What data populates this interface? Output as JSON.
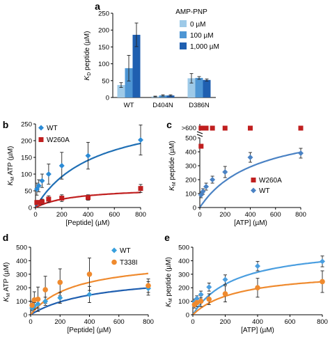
{
  "chart_data": [
    {
      "panel": "a",
      "type": "bar",
      "ylabel": "K_D peptide (µM)",
      "ylim": [
        0,
        250
      ],
      "yticks": [
        0,
        50,
        100,
        150,
        200,
        250
      ],
      "categories": [
        "WT",
        "D404N",
        "D386N"
      ],
      "legend_title": "AMP-PNP",
      "legend_position": "top-right",
      "series": [
        {
          "name": "0 µM",
          "color": "#9ecae8",
          "values": [
            37,
            3,
            57
          ],
          "err": [
            7,
            1,
            14
          ]
        },
        {
          "name": "100 µM",
          "color": "#4e96d4",
          "values": [
            87,
            6,
            58
          ],
          "err": [
            38,
            2,
            4
          ]
        },
        {
          "name": "1,000 µM",
          "color": "#1f5fb0",
          "values": [
            186,
            6,
            52
          ],
          "err": [
            35,
            2,
            3
          ]
        }
      ]
    },
    {
      "panel": "b",
      "type": "scatter",
      "xlabel": "[Peptide] (µM)",
      "ylabel": "K_M ATP (µM)",
      "xlim": [
        0,
        800
      ],
      "ylim": [
        0,
        250
      ],
      "xticks": [
        0,
        200,
        400,
        600,
        800
      ],
      "yticks": [
        0,
        50,
        100,
        150,
        200,
        250
      ],
      "legend_position": "top-left",
      "series": [
        {
          "name": "WT",
          "marker": "diamond",
          "color": "#2b8bd6",
          "curve_color": "#1f6fb5",
          "x": [
            10,
            25,
            50,
            100,
            200,
            400,
            800
          ],
          "y": [
            55,
            65,
            80,
            100,
            125,
            155,
            202
          ],
          "err": [
            18,
            18,
            20,
            30,
            40,
            40,
            45
          ],
          "fit": {
            "vmax": 300,
            "k": 450
          }
        },
        {
          "name": "W260A",
          "marker": "square",
          "color": "#c01f1f",
          "curve_color": "#c01f1f",
          "x": [
            10,
            25,
            50,
            100,
            200,
            400,
            800
          ],
          "y": [
            15,
            15,
            17,
            25,
            28,
            30,
            57
          ],
          "err": [
            6,
            6,
            8,
            10,
            10,
            8,
            12
          ],
          "fit": {
            "vmax": 62,
            "k": 300
          }
        }
      ]
    },
    {
      "panel": "c",
      "type": "scatter",
      "xlabel": "[ATP] (µM)",
      "ylabel": "K_M peptide (µM)",
      "xlim": [
        0,
        800
      ],
      "ylim": [
        0,
        500
      ],
      "xticks": [
        0,
        200,
        400,
        600,
        800
      ],
      "yticks": [
        0,
        100,
        200,
        300,
        400,
        500
      ],
      "y_break_label": ">600",
      "legend_position": "bottom-right",
      "series": [
        {
          "name": "W260A",
          "marker": "square",
          "color": "#c01f1f",
          "x": [
            10,
            25,
            50,
            100,
            200,
            400,
            800
          ],
          "y": [
            ">600",
            ">600",
            ">600",
            ">600",
            ">600",
            ">600",
            ">600"
          ],
          "extra_point": {
            "x": 10,
            "y": 440
          }
        },
        {
          "name": "WT",
          "marker": "diamond",
          "color": "#4a82c4",
          "curve_color": "#4a82c4",
          "x": [
            10,
            25,
            50,
            100,
            200,
            400,
            800
          ],
          "y": [
            90,
            115,
            150,
            200,
            255,
            360,
            390
          ],
          "err": [
            20,
            20,
            25,
            25,
            40,
            35,
            35
          ],
          "fit": {
            "vmax": 620,
            "k": 450
          }
        }
      ]
    },
    {
      "panel": "d",
      "type": "scatter",
      "xlabel": "[Peptide] (µM)",
      "ylabel": "K_M ATP (µM)",
      "xlim": [
        0,
        800
      ],
      "ylim": [
        0,
        500
      ],
      "xticks": [
        0,
        200,
        400,
        600,
        800
      ],
      "yticks": [
        0,
        100,
        200,
        300,
        400,
        500
      ],
      "legend_position": "top-right",
      "series": [
        {
          "name": "WT",
          "marker": "diamond",
          "color": "#39a0dd",
          "curve_color": "#1f5fb0",
          "x": [
            10,
            25,
            50,
            100,
            200,
            400,
            800
          ],
          "y": [
            50,
            65,
            80,
            100,
            125,
            150,
            195
          ],
          "err": [
            20,
            25,
            30,
            30,
            40,
            60,
            50
          ],
          "fit": {
            "vmax": 310,
            "k": 450
          }
        },
        {
          "name": "T338I",
          "marker": "circle",
          "color": "#ef8a2e",
          "curve_color": "#ef8a2e",
          "x": [
            10,
            25,
            50,
            100,
            200,
            400,
            800
          ],
          "y": [
            70,
            110,
            115,
            185,
            240,
            300,
            215
          ],
          "err": [
            30,
            60,
            90,
            100,
            100,
            120,
            50
          ],
          "fit": {
            "vmax": 420,
            "k": 300
          }
        }
      ]
    },
    {
      "panel": "e",
      "type": "scatter",
      "xlabel": "[ATP] (µM)",
      "ylabel": "K_M peptide (µM)",
      "xlim": [
        0,
        800
      ],
      "ylim": [
        0,
        500
      ],
      "xticks": [
        0,
        200,
        400,
        600,
        800
      ],
      "yticks": [
        0,
        100,
        200,
        300,
        400,
        500
      ],
      "series": [
        {
          "name": "WT",
          "marker": "diamond",
          "color": "#4a9ee0",
          "curve_color": "#4a9ee0",
          "x": [
            10,
            25,
            50,
            100,
            200,
            400,
            800
          ],
          "y": [
            95,
            120,
            150,
            205,
            260,
            360,
            395
          ],
          "err": [
            20,
            20,
            25,
            30,
            35,
            35,
            40
          ],
          "fit": {
            "vmax": 520,
            "k": 260
          }
        },
        {
          "name": "T338I",
          "marker": "circle",
          "color": "#ef8a2e",
          "curve_color": "#ef8a2e",
          "x": [
            10,
            25,
            50,
            100,
            200,
            400,
            800
          ],
          "y": [
            75,
            90,
            100,
            115,
            155,
            200,
            245
          ],
          "err": [
            25,
            30,
            40,
            40,
            60,
            70,
            80
          ],
          "fit": {
            "vmax": 330,
            "k": 280
          }
        }
      ]
    }
  ]
}
